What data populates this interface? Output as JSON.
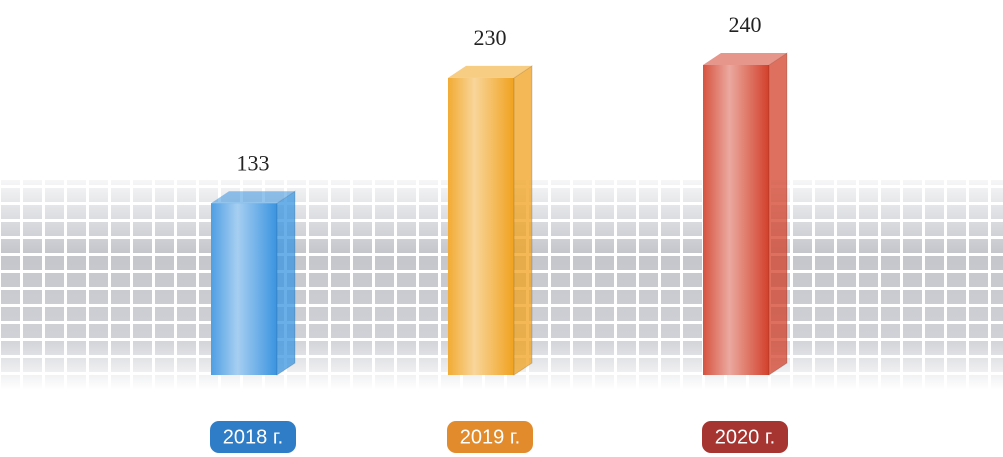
{
  "chart_data": {
    "type": "bar",
    "categories": [
      "2018 г.",
      "2019 г.",
      "2020 г."
    ],
    "values": [
      133,
      230,
      240
    ],
    "colors": [
      "#3a94e0",
      "#f0a21e",
      "#d2402a"
    ],
    "label_colors": [
      "#2f7dc6",
      "#e28b2c",
      "#a63430"
    ]
  }
}
